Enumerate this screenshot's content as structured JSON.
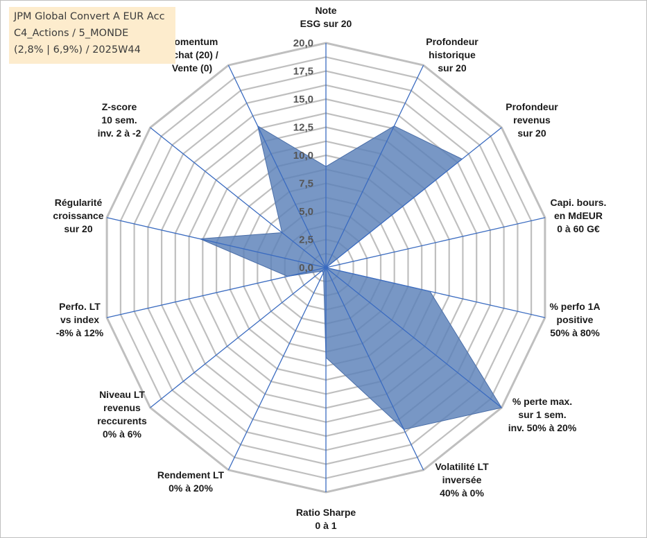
{
  "header": {
    "line1": "JPM Global Convert A EUR Acc",
    "line2": "C4_Actions / 5_MONDE",
    "line3": "(2,8% | 6,9%) / 2025W44"
  },
  "chart_data": {
    "type": "radar",
    "title": "JPM Global Convert A EUR Acc",
    "rmin": 0,
    "rmax": 20,
    "ticks": [
      "0,0",
      "2,5",
      "5,0",
      "7,5",
      "10,0",
      "12,5",
      "15,0",
      "17,5",
      "20,0"
    ],
    "tick_values": [
      0,
      2.5,
      5,
      7.5,
      10,
      12.5,
      15,
      17.5,
      20
    ],
    "grid": true,
    "axes": [
      {
        "label": [
          "Note",
          "ESG sur 20"
        ],
        "value": 9.0
      },
      {
        "label": [
          "Profondeur",
          "historique",
          "sur 20"
        ],
        "value": 14.0
      },
      {
        "label": [
          "Profondeur",
          "revenus",
          "sur 20"
        ],
        "value": 15.5
      },
      {
        "label": [
          "Capi. bours.",
          "en MdEUR",
          "0 à 60 G€"
        ],
        "value": 0.0
      },
      {
        "label": [
          "% perfo 1A",
          "positive",
          "50% à 80%"
        ],
        "value": 9.5
      },
      {
        "label": [
          "% perte max.",
          "sur 1 sem.",
          "inv. 50% à 20%"
        ],
        "value": 20.0
      },
      {
        "label": [
          "Volatilité LT",
          "inversée",
          "40% à 0%"
        ],
        "value": 16.0
      },
      {
        "label": [
          "Ratio Sharpe",
          "0 à 1"
        ],
        "value": 8.0
      },
      {
        "label": [
          "Rendement LT",
          "0% à 20%"
        ],
        "value": 0.5
      },
      {
        "label": [
          "Niveau LT",
          "revenus",
          "reccurents",
          "0% à 6%"
        ],
        "value": 0.5
      },
      {
        "label": [
          "Perfo. LT",
          "vs index",
          "-8% à 12%"
        ],
        "value": 3.5
      },
      {
        "label": [
          "Régularité",
          "croissance",
          "sur 20"
        ],
        "value": 11.5
      },
      {
        "label": [
          "Z-score",
          "10 sem.",
          "inv. 2 à -2"
        ],
        "value": 5.0
      },
      {
        "label": [
          "Momentum",
          "Achat (20) /",
          "Vente (0)"
        ],
        "value": 14.0
      }
    ],
    "colors": {
      "fill": "#5a80b8",
      "stroke": "#4a6ea8",
      "grid": "#bfbfbf",
      "axis": "#3a6bc0"
    }
  }
}
